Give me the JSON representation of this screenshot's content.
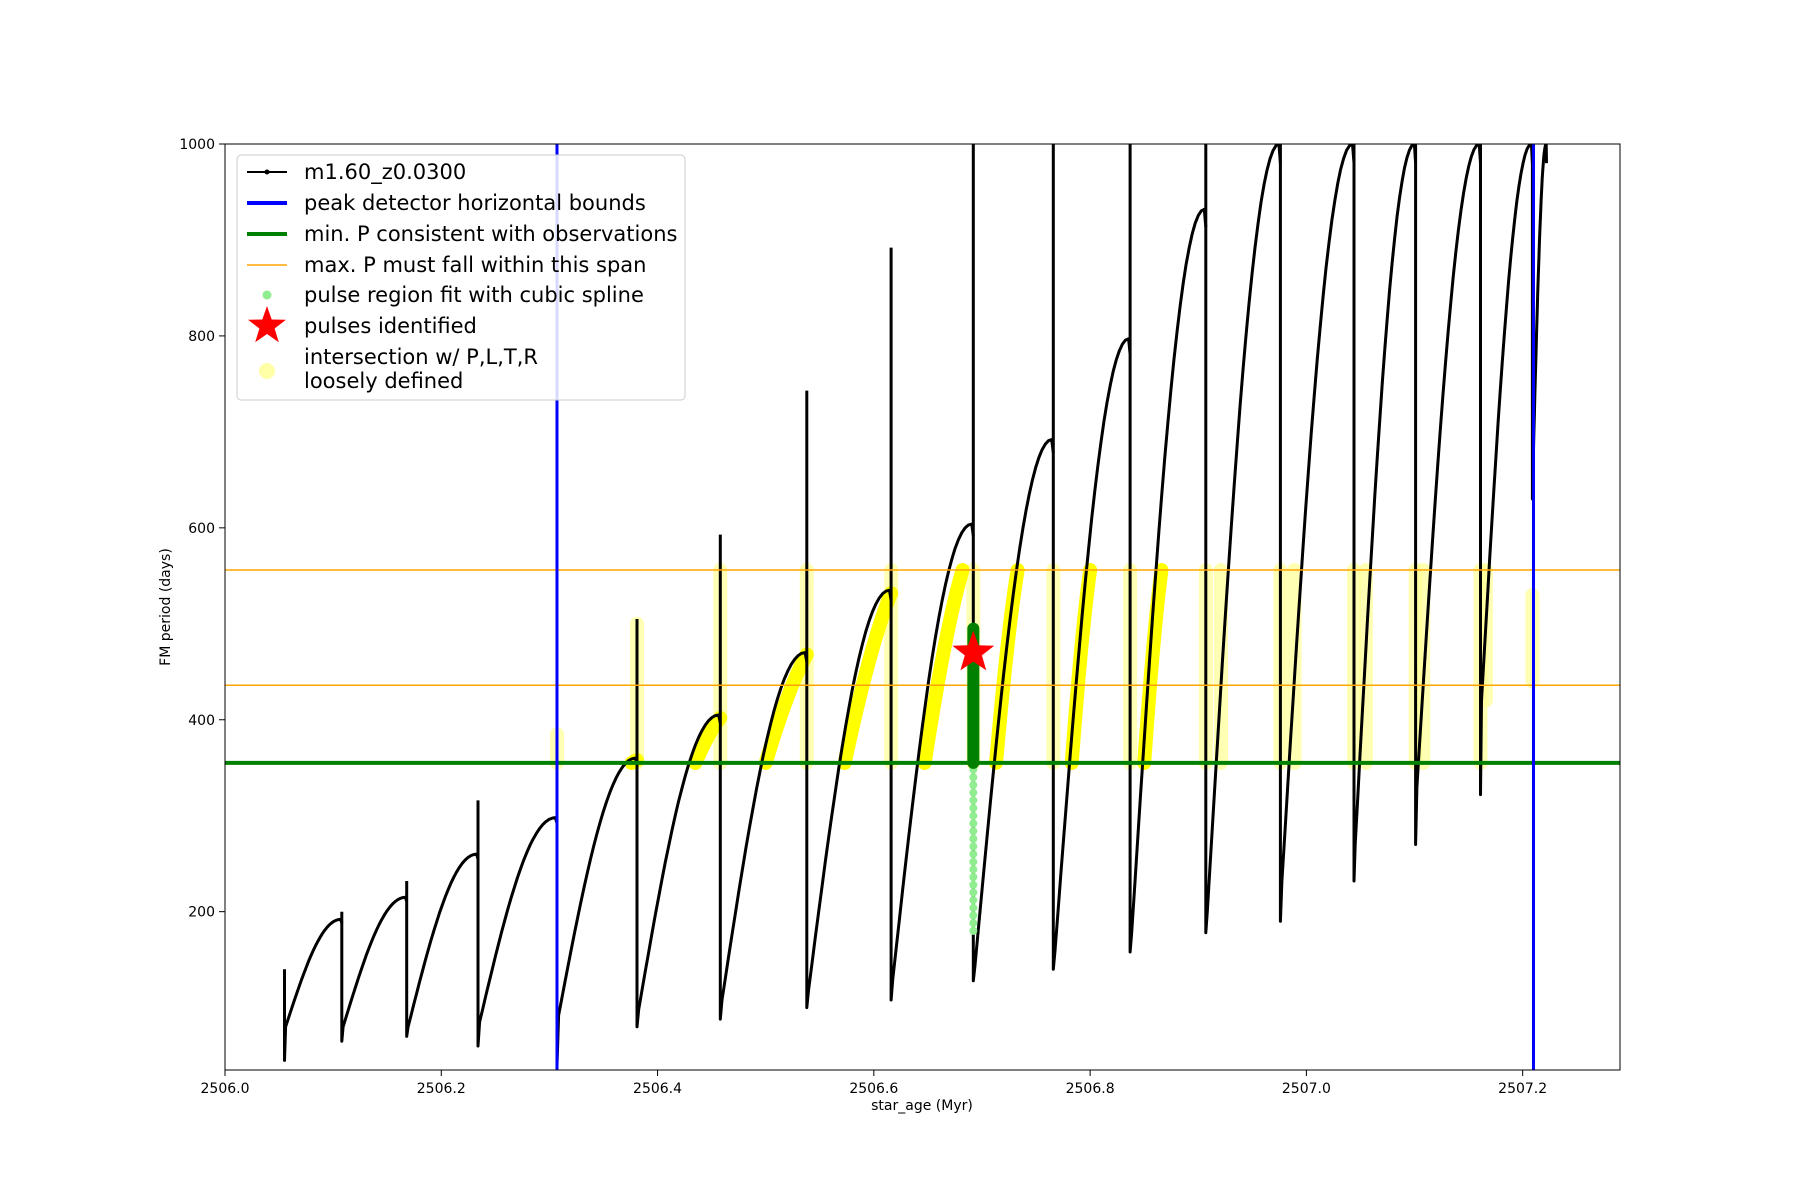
{
  "chart_data": {
    "type": "line",
    "title": "",
    "xlabel": "star_age (Myr)",
    "ylabel": "FM period (days)",
    "xlim": [
      2506.0,
      2507.29
    ],
    "ylim": [
      35,
      1000
    ],
    "x_ticks": [
      2506.0,
      2506.2,
      2506.4,
      2506.6,
      2506.8,
      2507.0,
      2507.2
    ],
    "x_tick_labels": [
      "2506.0",
      "2506.2",
      "2506.4",
      "2506.6",
      "2506.8",
      "2507.0",
      "2507.2"
    ],
    "y_ticks": [
      200,
      400,
      600,
      800,
      1000
    ],
    "y_tick_labels": [
      "200",
      "400",
      "600",
      "800",
      "1000"
    ],
    "legend_position": "top-left",
    "legend": [
      {
        "label": "m1.60_z0.0300",
        "style": "line-dot",
        "color": "#000000"
      },
      {
        "label": "peak detector horizontal bounds",
        "style": "thick-line",
        "color": "#0000ff"
      },
      {
        "label": "min. P consistent with observations",
        "style": "thick-line",
        "color": "#008000"
      },
      {
        "label": "max. P must fall within this span",
        "style": "thin-line",
        "color": "#ffa500"
      },
      {
        "label": "pulse region fit with cubic spline",
        "style": "dot",
        "color": "#90ee90"
      },
      {
        "label": "pulses identified",
        "style": "star",
        "color": "#ff0000"
      },
      {
        "label": "intersection w/ P,L,T,R",
        "label_line2": "loosely defined",
        "style": "big-dot",
        "color": "#ffffa8"
      }
    ],
    "vertical_lines": [
      {
        "name": "peak detector horizontal bounds",
        "x": 2506.307,
        "color": "#0000ff"
      },
      {
        "name": "peak detector horizontal bounds",
        "x": 2507.21,
        "color": "#0000ff"
      }
    ],
    "horizontal_lines": [
      {
        "name": "min. P consistent with observations",
        "y": 355,
        "color": "#008000"
      },
      {
        "name": "max. P must fall within this span",
        "y": 556,
        "color": "#ffa500"
      },
      {
        "name": "max. P must fall within this span",
        "y": 436,
        "color": "#ffa500"
      }
    ],
    "series": [
      {
        "name": "m1.60_z0.0300",
        "color": "#000000",
        "pulses": [
          {
            "x0": 2506.055,
            "min": 45,
            "start": 80,
            "x1": 2506.108,
            "max": 192,
            "spike": 140
          },
          {
            "x0": 2506.108,
            "min": 65,
            "start": 80,
            "x1": 2506.168,
            "max": 215,
            "spike": 200
          },
          {
            "x0": 2506.168,
            "min": 70,
            "start": 80,
            "x1": 2506.234,
            "max": 260,
            "spike": 232
          },
          {
            "x0": 2506.234,
            "min": 60,
            "start": 85,
            "x1": 2506.307,
            "max": 298,
            "spike": 316
          },
          {
            "x0": 2506.307,
            "min": 40,
            "start": 92,
            "x1": 2506.381,
            "max": 360,
            "spike": 365
          },
          {
            "x0": 2506.381,
            "min": 80,
            "start": 98,
            "x1": 2506.458,
            "max": 405,
            "spike": 505
          },
          {
            "x0": 2506.458,
            "min": 88,
            "start": 108,
            "x1": 2506.538,
            "max": 470,
            "spike": 593
          },
          {
            "x0": 2506.538,
            "min": 100,
            "start": 118,
            "x1": 2506.616,
            "max": 535,
            "spike": 743
          },
          {
            "x0": 2506.616,
            "min": 108,
            "start": 130,
            "x1": 2506.692,
            "max": 604,
            "spike": 892
          },
          {
            "x0": 2506.692,
            "min": 128,
            "start": 143,
            "x1": 2506.766,
            "max": 692,
            "spike": 1000
          },
          {
            "x0": 2506.766,
            "min": 140,
            "start": 158,
            "x1": 2506.837,
            "max": 797,
            "spike": 1000
          },
          {
            "x0": 2506.837,
            "min": 158,
            "start": 177,
            "x1": 2506.907,
            "max": 932,
            "spike": 1000
          },
          {
            "x0": 2506.907,
            "min": 178,
            "start": 200,
            "x1": 2506.976,
            "max": 1000,
            "spike": 1000
          },
          {
            "x0": 2506.976,
            "min": 190,
            "start": 232,
            "x1": 2507.044,
            "max": 1000,
            "spike": 1000
          },
          {
            "x0": 2507.044,
            "min": 232,
            "start": 270,
            "x1": 2507.101,
            "max": 1000,
            "spike": 1000
          },
          {
            "x0": 2507.101,
            "min": 270,
            "start": 330,
            "x1": 2507.161,
            "max": 1000,
            "spike": 1000
          },
          {
            "x0": 2507.161,
            "min": 322,
            "start": 420,
            "x1": 2507.209,
            "max": 1000,
            "spike": 1000
          },
          {
            "x0": 2507.209,
            "min": 630,
            "start": 650,
            "x1": 2507.222,
            "max": 1000,
            "spike": 1000
          }
        ]
      },
      {
        "name": "intersection w/ P,L,T,R loosely defined (strong)",
        "color": "#ffff00",
        "segments": [
          {
            "x0": 2506.376,
            "y0": 355,
            "x1": 2506.381,
            "y1": 358
          },
          {
            "x0": 2506.435,
            "y0": 355,
            "x1": 2506.458,
            "y1": 402
          },
          {
            "x0": 2506.5,
            "y0": 355,
            "x1": 2506.538,
            "y1": 468
          },
          {
            "x0": 2506.573,
            "y0": 355,
            "x1": 2506.616,
            "y1": 532
          },
          {
            "x0": 2506.647,
            "y0": 355,
            "x1": 2506.682,
            "y1": 556
          },
          {
            "x0": 2506.713,
            "y0": 355,
            "x1": 2506.733,
            "y1": 556
          },
          {
            "x0": 2506.783,
            "y0": 355,
            "x1": 2506.8,
            "y1": 556
          },
          {
            "x0": 2506.85,
            "y0": 355,
            "x1": 2506.866,
            "y1": 556
          }
        ]
      },
      {
        "name": "intersection w/ P,L,T,R loosely defined (faint spikes)",
        "color": "#ffff99",
        "x": [
          2506.307,
          2506.381,
          2506.458,
          2506.538,
          2506.616,
          2506.692,
          2506.766,
          2506.837,
          2506.907,
          2506.921,
          2506.976,
          2506.989,
          2507.044,
          2507.055,
          2507.101,
          2507.108,
          2507.161,
          2507.166,
          2507.209
        ],
        "y0": [
          355,
          355,
          355,
          355,
          355,
          355,
          355,
          355,
          355,
          355,
          355,
          355,
          355,
          355,
          355,
          355,
          355,
          420,
          440
        ],
        "y1": [
          385,
          500,
          556,
          556,
          556,
          556,
          556,
          556,
          556,
          556,
          556,
          556,
          556,
          556,
          556,
          556,
          556,
          556,
          530
        ]
      },
      {
        "name": "pulse region fit with cubic spline",
        "color": "#90ee90",
        "x": 2506.692,
        "y0": 180,
        "y1": 355
      },
      {
        "name": "min. P consistent with observations (selected pulse)",
        "color": "#008000",
        "x": 2506.692,
        "y0": 355,
        "y1": 495
      },
      {
        "name": "pulses identified",
        "color": "#ff0000",
        "x": 2506.692,
        "y": 470
      }
    ]
  }
}
